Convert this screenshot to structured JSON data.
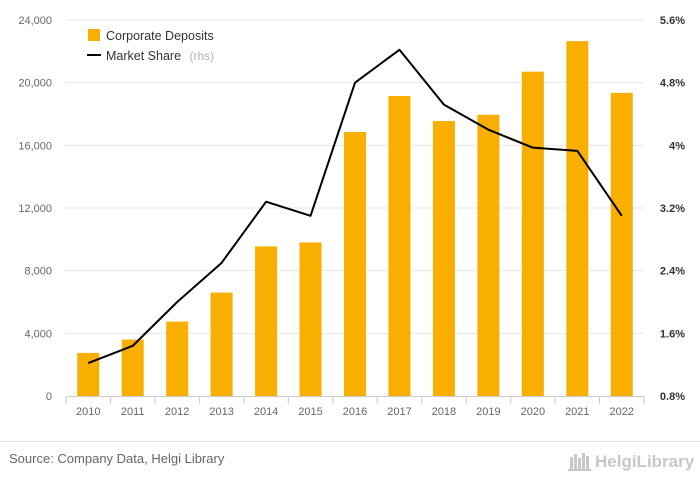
{
  "chart_data": {
    "type": "bar",
    "categories": [
      "2010",
      "2011",
      "2012",
      "2013",
      "2014",
      "2015",
      "2016",
      "2017",
      "2018",
      "2019",
      "2020",
      "2021",
      "2022"
    ],
    "series": [
      {
        "name": "Corporate Deposits",
        "type": "bar",
        "axis": "left",
        "color": "#F8AF00",
        "values": [
          2750,
          3600,
          4750,
          6600,
          9550,
          9800,
          16850,
          19150,
          17550,
          17950,
          20700,
          22650,
          19350
        ]
      },
      {
        "name": "Market Share",
        "name_suffix": "(rhs)",
        "type": "line",
        "axis": "right",
        "color": "#000000",
        "values": [
          1.22,
          1.44,
          2.0,
          2.5,
          3.28,
          3.1,
          4.8,
          5.22,
          4.52,
          4.2,
          3.97,
          3.93,
          3.1
        ]
      }
    ],
    "yaxis_left": {
      "range": [
        0,
        24000
      ],
      "ticks": [
        0,
        4000,
        8000,
        12000,
        16000,
        20000,
        24000
      ],
      "tick_labels": [
        "0",
        "4,000",
        "8,000",
        "12,000",
        "16,000",
        "20,000",
        "24,000"
      ]
    },
    "yaxis_right": {
      "range": [
        0.8,
        5.6
      ],
      "ticks": [
        0.8,
        1.6,
        2.4,
        3.2,
        4.0,
        4.8,
        5.6
      ],
      "tick_labels": [
        "0.8%",
        "1.6%",
        "2.4%",
        "3.2%",
        "4%",
        "4.8%",
        "5.6%"
      ]
    },
    "grid": true,
    "legend_position": "top-left"
  },
  "footer": {
    "source": "Source: Company Data, Helgi Library",
    "logo_text": "HelgiLibrary",
    "logo_icon": "helgi-library-logo-icon"
  },
  "colors": {
    "bar": "#F8AF00",
    "line": "#000000",
    "grid": "#e6e6e6",
    "text": "#666666"
  }
}
